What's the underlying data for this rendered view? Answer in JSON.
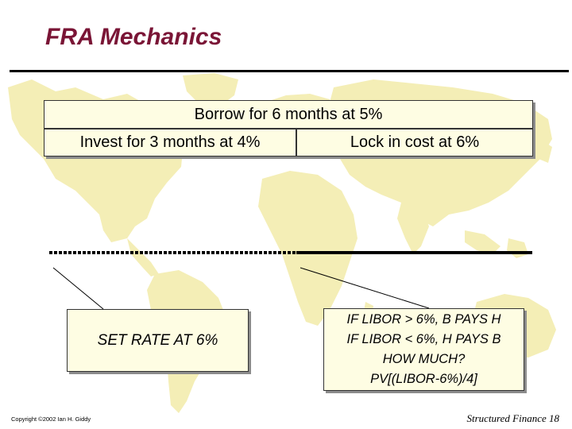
{
  "slide": {
    "title": "FRA Mechanics",
    "timeline": {
      "borrow": "Borrow for 6 months at 5%",
      "invest": "Invest for 3 months at 4%",
      "lock": "Lock in cost at 6%"
    },
    "callouts": {
      "set_rate": "SET RATE AT 6%",
      "payment_lines": [
        "IF LIBOR > 6%, B PAYS H",
        "IF LIBOR < 6%, H PAYS B",
        "HOW MUCH?",
        "PV[(LIBOR-6%)/4]"
      ]
    },
    "footer": {
      "copyright": "Copyright ©2002 Ian H. Giddy",
      "page_label": "Structured Finance 18"
    },
    "colors": {
      "title": "#7a1536",
      "box_fill": "#fefde3",
      "map": "#f4eeb6"
    }
  }
}
